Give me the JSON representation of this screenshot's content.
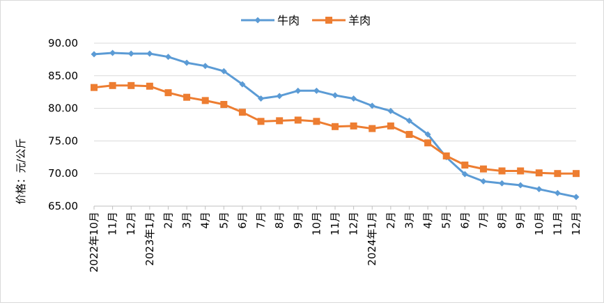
{
  "chart_data": {
    "type": "line",
    "title": "",
    "ylabel": "价格：元/公斤",
    "xlabel": "",
    "ylim": [
      65,
      90
    ],
    "yticks": [
      "65.00",
      "70.00",
      "75.00",
      "80.00",
      "85.00",
      "90.00"
    ],
    "grid": true,
    "legend": "top-center",
    "categories": [
      "2022年10月",
      "11月",
      "12月",
      "2023年1月",
      "2月",
      "3月",
      "4月",
      "5月",
      "6月",
      "7月",
      "8月",
      "9月",
      "10月",
      "11月",
      "12月",
      "2024年1月",
      "2月",
      "3月",
      "4月",
      "5月",
      "6月",
      "7月",
      "8月",
      "9月",
      "10月",
      "11月",
      "12月"
    ],
    "series": [
      {
        "name": "牛肉",
        "color": "#5b9bd5",
        "marker": "diamond",
        "values": [
          88.3,
          88.5,
          88.4,
          88.4,
          87.9,
          87.0,
          86.5,
          85.7,
          83.7,
          81.5,
          81.9,
          82.7,
          82.7,
          82.0,
          81.5,
          80.4,
          79.6,
          78.1,
          76.0,
          72.5,
          69.9,
          68.8,
          68.5,
          68.2,
          67.6,
          67.0,
          66.4
        ]
      },
      {
        "name": "羊肉",
        "color": "#ed7d31",
        "marker": "square",
        "values": [
          83.2,
          83.5,
          83.5,
          83.4,
          82.4,
          81.7,
          81.2,
          80.6,
          79.4,
          78.0,
          78.1,
          78.2,
          78.0,
          77.2,
          77.3,
          76.9,
          77.3,
          76.0,
          74.7,
          72.7,
          71.3,
          70.7,
          70.4,
          70.4,
          70.1,
          70.0,
          70.0
        ]
      }
    ]
  }
}
